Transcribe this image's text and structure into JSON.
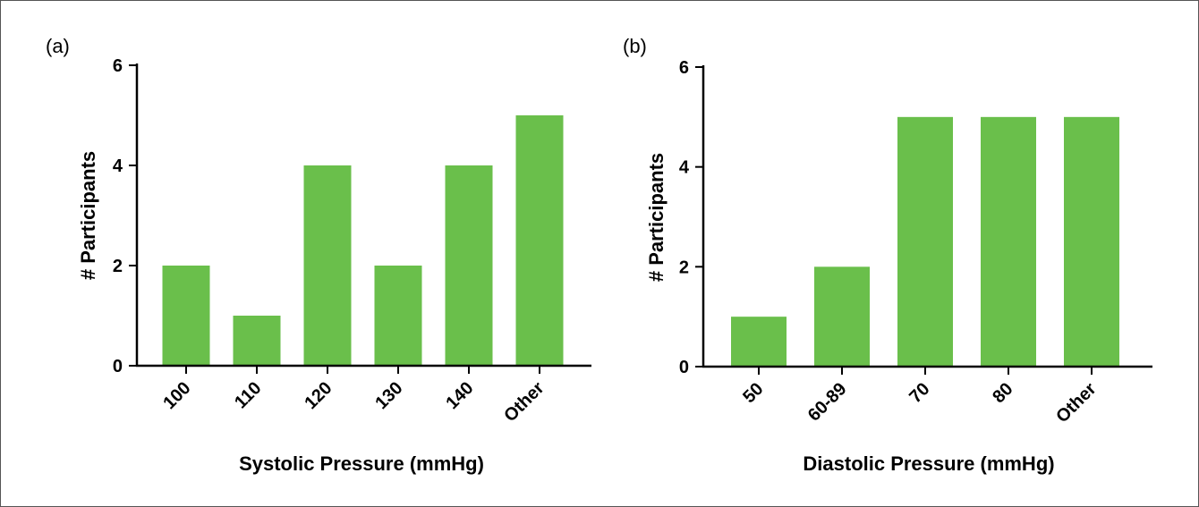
{
  "chart_data": [
    {
      "type": "bar",
      "panel_label": "(a)",
      "categories": [
        "100",
        "110",
        "120",
        "130",
        "140",
        "Other"
      ],
      "values": [
        2,
        1,
        4,
        2,
        4,
        5
      ],
      "xlabel": "Systolic Pressure (mmHg)",
      "ylabel": "# Participants",
      "ylim": [
        0,
        6
      ],
      "yticks": [
        0,
        2,
        4,
        6
      ],
      "color": "#6abf4b",
      "grid": false
    },
    {
      "type": "bar",
      "panel_label": "(b)",
      "categories": [
        "50",
        "60-89",
        "70",
        "80",
        "Other"
      ],
      "values": [
        1,
        2,
        5,
        5,
        5
      ],
      "xlabel": "Diastolic Pressure (mmHg)",
      "ylabel": "# Participants",
      "ylim": [
        0,
        6
      ],
      "yticks": [
        0,
        2,
        4,
        6
      ],
      "color": "#6abf4b",
      "grid": false
    }
  ]
}
